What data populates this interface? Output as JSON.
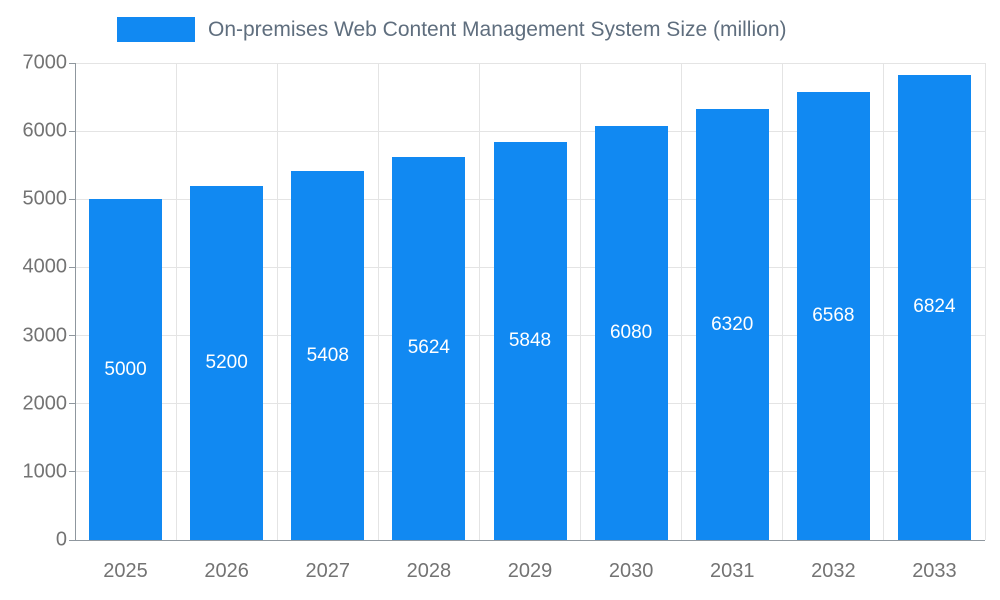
{
  "chart_data": {
    "type": "bar",
    "title": "On-premises Web Content Management System Size (million)",
    "legend": "On-premises Web Content Management System Size (million)",
    "legend_position": "top",
    "categories": [
      "2025",
      "2026",
      "2027",
      "2028",
      "2029",
      "2030",
      "2031",
      "2032",
      "2033"
    ],
    "values": [
      5000,
      5200,
      5408,
      5624,
      5848,
      6080,
      6320,
      6568,
      6824
    ],
    "xlabel": "",
    "ylabel": "",
    "ylim": [
      0,
      7000
    ],
    "yticks": [
      0,
      1000,
      2000,
      3000,
      4000,
      5000,
      6000,
      7000
    ],
    "grid": true,
    "bar_color": "#1189F2",
    "value_label_color": "#ffffff",
    "axis_label_color": "#737373",
    "legend_text_color": "#5f6e7e"
  }
}
